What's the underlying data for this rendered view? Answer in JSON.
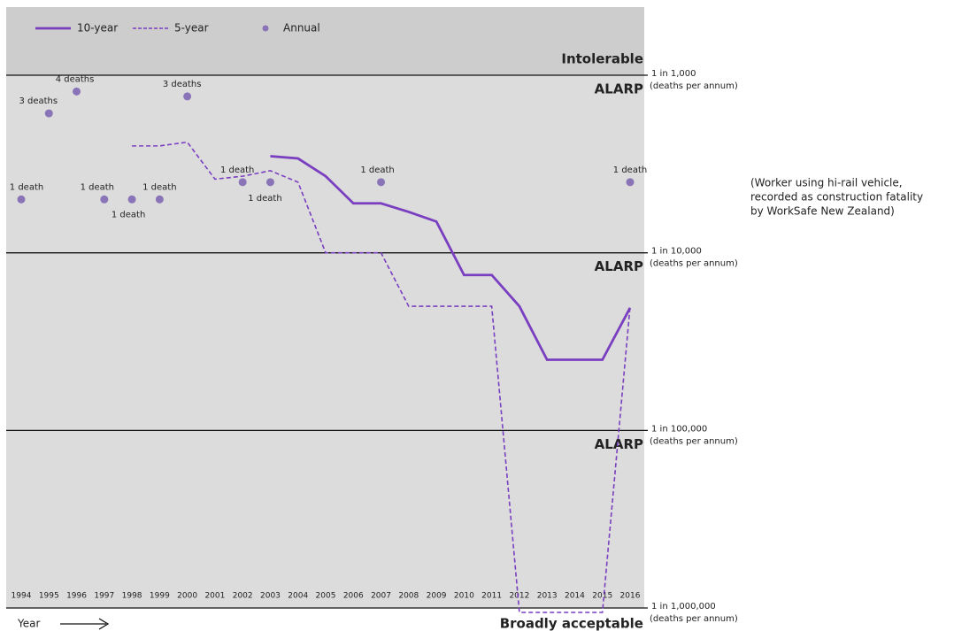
{
  "chart_data": {
    "type": "line",
    "x": [
      1994,
      1995,
      1996,
      1997,
      1998,
      1999,
      2000,
      2001,
      2002,
      2003,
      2004,
      2005,
      2006,
      2007,
      2008,
      2009,
      2010,
      2011,
      2012,
      2013,
      2014,
      2015,
      2016
    ],
    "xlim": [
      1994,
      2016
    ],
    "xticks": [
      1994,
      1995,
      1996,
      1997,
      1998,
      1999,
      2000,
      2001,
      2002,
      2003,
      2004,
      2005,
      2006,
      2007,
      2008,
      2009,
      2010,
      2011,
      2012,
      2013,
      2014,
      2015,
      2016
    ],
    "xlabel": "Year",
    "ylim": [
      1e-06,
      0.00242
    ],
    "log_y": true,
    "yticks": [
      {
        "value": 0.001,
        "label": "1 in 1,000"
      },
      {
        "value": 0.0001,
        "label": "1 in 10,000"
      },
      {
        "value": 1e-05,
        "label": "1 in 100,000"
      },
      {
        "value": 1e-06,
        "label": "1 in 1,000,000"
      }
    ],
    "ytick_unit": "(deaths per annum)",
    "zones": [
      "Intolerable",
      "ALARP",
      "ALARP",
      "ALARP",
      "Broadly acceptable"
    ],
    "note": [
      "(Worker using hi-rail vehicle,",
      "recorded as construction fatality",
      "by WorkSafe New Zealand)"
    ],
    "legend": "top-left",
    "series": [
      {
        "name": "10-year",
        "color": "#7a3fc0",
        "style": "solid",
        "values": [
          null,
          null,
          null,
          null,
          null,
          null,
          null,
          null,
          null,
          0.00035,
          0.00034,
          0.00027,
          0.00019,
          0.00019,
          0.00017,
          0.00015,
          7.5e-05,
          7.5e-05,
          5e-05,
          2.5e-05,
          2.5e-05,
          2.5e-05,
          4.9e-05
        ]
      },
      {
        "name": "5-year",
        "color": "#7a3fc0",
        "style": "dashed",
        "values": [
          null,
          null,
          null,
          null,
          0.0004,
          0.0004,
          0.00042,
          0.00026,
          0.00027,
          0.00029,
          0.00025,
          0.0001,
          0.0001,
          0.0001,
          5e-05,
          5e-05,
          5e-05,
          5e-05,
          0,
          0,
          0,
          0,
          5e-05
        ]
      },
      {
        "name": "Annual",
        "color": "#8a74b8",
        "style": "dots",
        "values": [
          0.0002,
          0.00061,
          0.00081,
          0.0002,
          0.0002,
          0.0002,
          0.00076,
          null,
          0.00025,
          0.00025,
          null,
          null,
          null,
          0.00025,
          null,
          null,
          null,
          null,
          null,
          null,
          null,
          null,
          0.00025
        ],
        "labels": [
          "1 death",
          "3 deaths",
          "4 deaths",
          "1 death",
          "1 death",
          "1 death",
          "3 deaths",
          null,
          "1 death",
          "1 death",
          null,
          null,
          null,
          "1 death",
          null,
          null,
          null,
          null,
          null,
          null,
          null,
          null,
          "1 death"
        ]
      }
    ]
  }
}
